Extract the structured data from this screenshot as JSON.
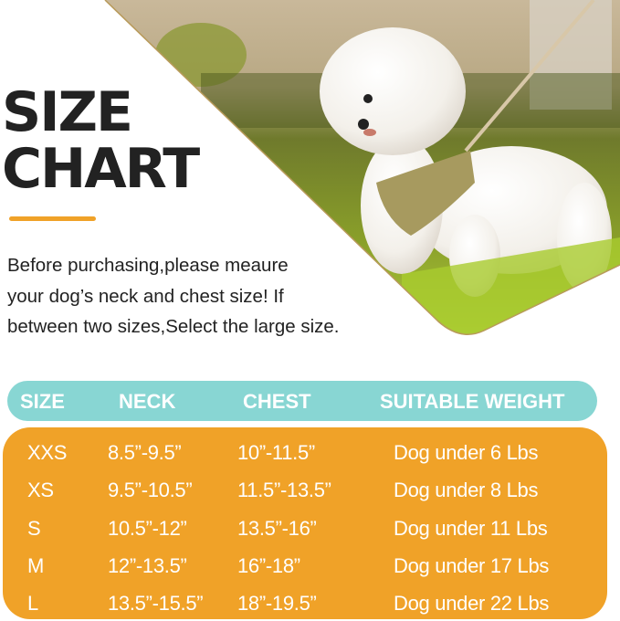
{
  "title": {
    "line1": "SIZE",
    "line2": "CHART"
  },
  "description": [
    "Before purchasing,please meaure",
    "your dog’s neck and chest size! If",
    "between two sizes,Select the large size."
  ],
  "colors": {
    "accent": "#f0a228",
    "header": "#88d6d3",
    "title": "#222222"
  },
  "photo": {
    "subject": "white bichon dog wearing harness on grass"
  },
  "table": {
    "headers": [
      "SIZE",
      "NECK",
      "CHEST",
      "SUITABLE WEIGHT"
    ],
    "rows": [
      [
        "XXS",
        "8.5”-9.5”",
        "10”-11.5”",
        "Dog under 6 Lbs"
      ],
      [
        "XS",
        "9.5”-10.5”",
        "11.5”-13.5”",
        "Dog under 8 Lbs"
      ],
      [
        "S",
        "10.5”-12”",
        "13.5”-16”",
        "Dog under 11 Lbs"
      ],
      [
        "M",
        "12”-13.5”",
        "16”-18”",
        "Dog under 17 Lbs"
      ],
      [
        "L",
        "13.5”-15.5”",
        "18”-19.5”",
        "Dog under 22 Lbs"
      ]
    ]
  }
}
